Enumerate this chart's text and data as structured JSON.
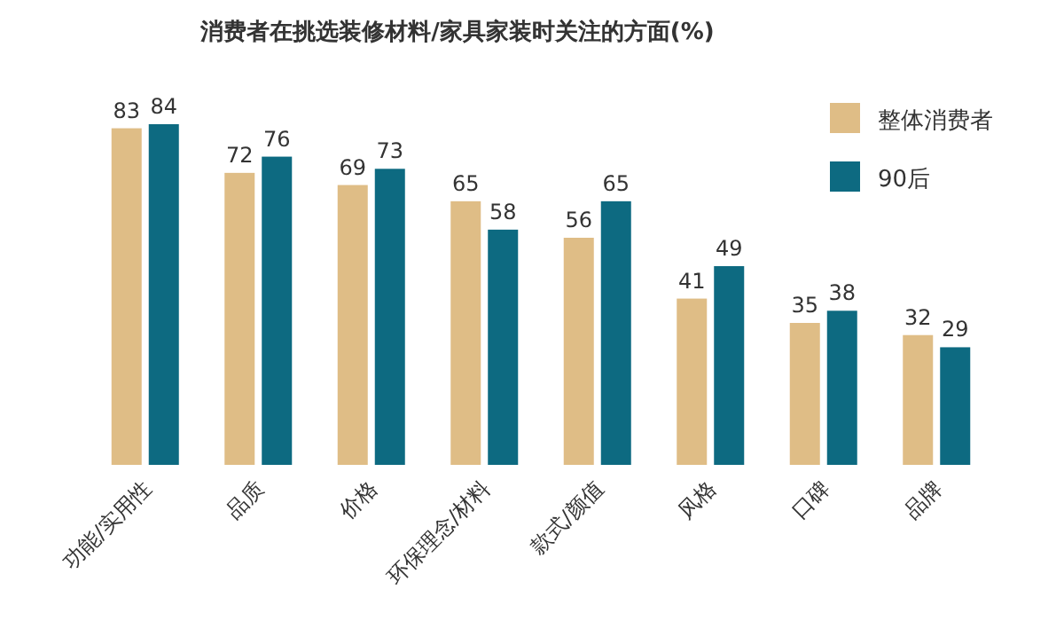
{
  "chart_data": {
    "type": "bar",
    "title": "消费者在挑选装修材料/家具家装时关注的方面(%)",
    "categories": [
      "功能/实用性",
      "品质",
      "价格",
      "环保理念/材料",
      "款式/颜值",
      "风格",
      "口碑",
      "品牌"
    ],
    "series": [
      {
        "name": "整体消费者",
        "color": "#dfbd86",
        "values": [
          83,
          72,
          69,
          65,
          56,
          41,
          35,
          32
        ]
      },
      {
        "name": "90后",
        "color": "#0d6a81",
        "values": [
          84,
          76,
          73,
          58,
          65,
          49,
          38,
          29
        ]
      }
    ],
    "data_labels": true,
    "legend": "top right"
  }
}
